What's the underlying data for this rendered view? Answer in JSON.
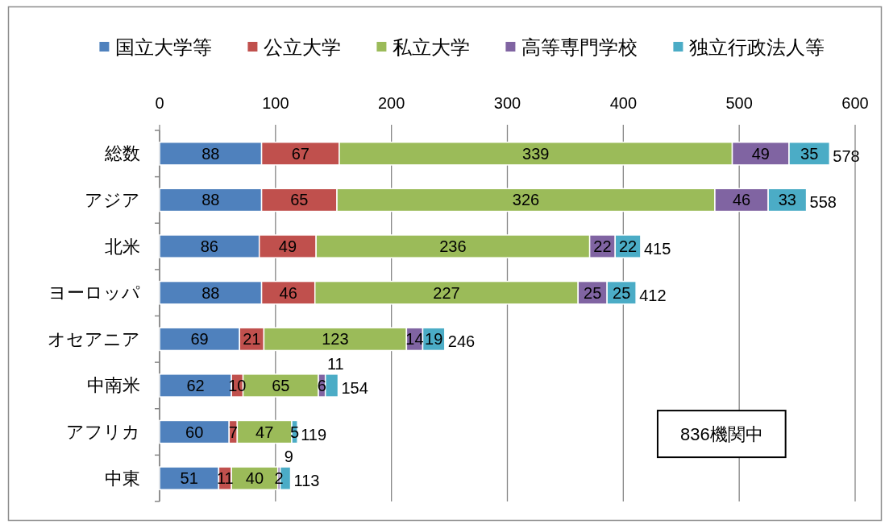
{
  "chart_data": {
    "type": "bar",
    "orientation": "horizontal",
    "stacked": true,
    "categories": [
      "総数",
      "アジア",
      "北米",
      "ヨーロッパ",
      "オセアニア",
      "中南米",
      "アフリカ",
      "中東"
    ],
    "series": [
      {
        "name": "国立大学等",
        "color": "#4f81bd",
        "values": [
          88,
          88,
          86,
          88,
          69,
          62,
          60,
          51
        ]
      },
      {
        "name": "公立大学",
        "color": "#c0504d",
        "values": [
          67,
          65,
          49,
          46,
          21,
          10,
          7,
          11
        ]
      },
      {
        "name": "私立大学",
        "color": "#9bbb59",
        "values": [
          339,
          326,
          236,
          227,
          123,
          65,
          47,
          40
        ]
      },
      {
        "name": "高等専門学校",
        "color": "#8064a2",
        "values": [
          49,
          46,
          22,
          25,
          14,
          6,
          null,
          2
        ]
      },
      {
        "name": "独立行政法人等",
        "color": "#4bacc6",
        "values": [
          35,
          33,
          22,
          25,
          19,
          11,
          5,
          9
        ]
      }
    ],
    "xlim": [
      0,
      600
    ],
    "xticks": [
      0,
      100,
      200,
      300,
      400,
      500,
      600
    ],
    "grid": "x",
    "legend": "top",
    "data_labels": true,
    "totals": [
      "578",
      "558",
      "415",
      "412",
      "246",
      "154",
      "119",
      "113"
    ],
    "annotations": [
      "836機関中"
    ]
  }
}
